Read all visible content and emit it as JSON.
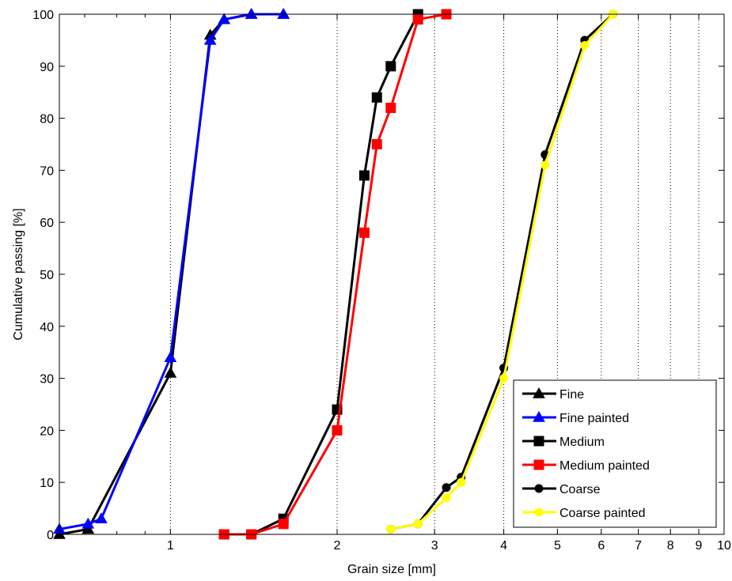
{
  "chart_data": {
    "type": "line",
    "xlabel": "Grain size [mm]",
    "ylabel": "Cumulative passing [%]",
    "xscale": "log",
    "xlim": [
      0.63,
      10
    ],
    "ylim": [
      0,
      100
    ],
    "x_ticks": [
      1,
      2,
      3,
      4,
      5,
      6,
      7,
      8,
      9,
      10
    ],
    "y_ticks": [
      0,
      10,
      20,
      30,
      40,
      50,
      60,
      70,
      80,
      90,
      100
    ],
    "grid": "vertical dotted",
    "legend_position": "bottom-right",
    "series": [
      {
        "name": "Fine",
        "color": "#000000",
        "marker": "triangle",
        "x": [
          0.63,
          0.71,
          1.0,
          1.18,
          1.25,
          1.4,
          1.6
        ],
        "y": [
          0,
          1,
          31,
          96,
          99,
          100,
          100
        ]
      },
      {
        "name": "Fine painted",
        "color": "#0000ff",
        "marker": "triangle",
        "x": [
          0.63,
          0.71,
          0.75,
          1.0,
          1.18,
          1.25,
          1.4,
          1.6
        ],
        "y": [
          1,
          2,
          3,
          34,
          95,
          99,
          100,
          100
        ]
      },
      {
        "name": "Medium",
        "color": "#000000",
        "marker": "square",
        "x": [
          1.25,
          1.4,
          1.6,
          2.0,
          2.24,
          2.36,
          2.5,
          2.8
        ],
        "y": [
          0,
          0,
          3,
          24,
          69,
          84,
          90,
          100
        ]
      },
      {
        "name": "Medium painted",
        "color": "#ff0000",
        "marker": "square",
        "x": [
          1.25,
          1.4,
          1.6,
          2.0,
          2.24,
          2.36,
          2.5,
          2.8,
          3.15
        ],
        "y": [
          0,
          0,
          2,
          20,
          58,
          75,
          82,
          99,
          100
        ]
      },
      {
        "name": "Coarse",
        "color": "#000000",
        "marker": "circle",
        "x": [
          2.5,
          2.8,
          3.15,
          3.35,
          4.0,
          4.75,
          5.6,
          6.3
        ],
        "y": [
          1,
          2,
          9,
          11,
          32,
          73,
          95,
          100
        ]
      },
      {
        "name": "Coarse painted",
        "color": "#ffff00",
        "marker": "circle",
        "x": [
          2.5,
          2.8,
          3.15,
          3.35,
          4.0,
          4.75,
          5.6,
          6.3
        ],
        "y": [
          1,
          2,
          7,
          10,
          30,
          71,
          94,
          100
        ]
      }
    ]
  }
}
